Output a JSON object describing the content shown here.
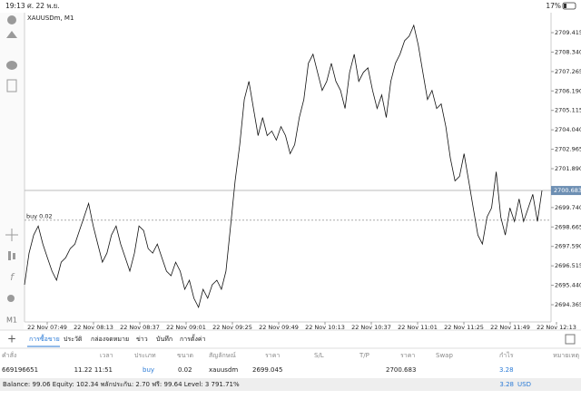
{
  "status_bar": {
    "time": "19:13",
    "date": "ศ. 22 พ.ย.",
    "battery": "17%"
  },
  "chart": {
    "symbol": "XAUUSDm, M1",
    "y_ticks": [
      2709.415,
      {
        "value": 2708.34,
        "label": "2708.340"
      },
      2707.265,
      {
        "value": 2706.19,
        "label": "2706.190"
      },
      2705.115,
      {
        "value": 2704.04,
        "label": "2704.040"
      },
      2702.965,
      {
        "value": 2701.89,
        "label": "2701.890"
      },
      {
        "value": 2699.74,
        "label": "2699.740"
      },
      2698.665,
      {
        "value": 2697.59,
        "label": "2697.590"
      },
      2696.515,
      {
        "value": 2695.44,
        "label": "2695.440"
      },
      2694.365
    ],
    "current_price": 2700.683,
    "order_line": {
      "label": "buy 0.02",
      "price": 2699.045
    },
    "x_ticks": [
      "22 Nov 07:49",
      "22 Nov 08:13",
      "22 Nov 08:37",
      "22 Nov 09:01",
      "22 Nov 09:25",
      "22 Nov 09:49",
      "22 Nov 10:13",
      "22 Nov 10:37",
      "22 Nov 11:01",
      "22 Nov 11:25",
      "22 Nov 11:49",
      "22 Nov 12:13"
    ],
    "prices": [
      2695.47,
      2697.22,
      2698.22,
      2698.72,
      2697.72,
      2696.97,
      2696.22,
      2695.72,
      2696.72,
      2696.97,
      2697.47,
      2697.72,
      2698.47,
      2699.22,
      2699.97,
      2698.72,
      2697.72,
      2696.72,
      2697.22,
      2698.22,
      2698.72,
      2697.72,
      2696.97,
      2696.22,
      2697.22,
      2698.72,
      2698.47,
      2697.47,
      2697.22,
      2697.72,
      2696.97,
      2696.22,
      2695.97,
      2696.72,
      2696.22,
      2695.22,
      2695.72,
      2694.72,
      2694.22,
      2695.22,
      2694.72,
      2695.47,
      2695.72,
      2695.22,
      2696.22,
      2698.72,
      2701.22,
      2703.22,
      2705.72,
      2706.72,
      2705.22,
      2703.72,
      2704.72,
      2703.72,
      2703.97,
      2703.47,
      2704.22,
      2703.72,
      2702.72,
      2703.22,
      2704.72,
      2705.72,
      2707.72,
      2708.22,
      2707.22,
      2706.22,
      2706.72,
      2707.72,
      2706.72,
      2706.22,
      2705.22,
      2707.22,
      2708.22,
      2706.72,
      2707.22,
      2707.47,
      2706.22,
      2705.22,
      2705.97,
      2704.72,
      2706.72,
      2707.72,
      2708.22,
      2708.97,
      2709.22,
      2709.82,
      2708.72,
      2707.22,
      2705.72,
      2706.22,
      2705.22,
      2705.47,
      2704.22,
      2702.47,
      2701.22,
      2701.47,
      2702.72,
      2701.22,
      2699.72,
      2698.22,
      2697.72,
      2699.22,
      2699.72,
      2701.72,
      2699.22,
      2698.22,
      2699.72,
      2698.97,
      2700.22,
      2698.97,
      2699.72,
      2700.47,
      2698.97,
      2700.68
    ]
  },
  "tabs": [
    "การซื้อขาย",
    "ประวัติ",
    "กล่องจดหมาย",
    "ข่าว",
    "บันทึก",
    "การตั้งค่า"
  ],
  "table": {
    "headers": [
      "คำสั่ง",
      "เวลา",
      "ประเภท",
      "ขนาด",
      "สัญลักษณ์",
      "ราคา",
      "S/L",
      "T/P",
      "ราคา",
      "Swap",
      "กำไร",
      "หมายเหตุ"
    ],
    "row": {
      "order": "669196651",
      "time": "11.22 11:51",
      "type": "buy",
      "volume": 0.02,
      "symbol": "xauusdm",
      "open_price": 2699.045,
      "price": 2700.683,
      "profit": 3.28
    }
  },
  "footer": {
    "summary": "Balance: 99.06 Equity: 102.34 พลักประกัน: 2.70 ฟรี: 99.64 Level: 3 791.71%",
    "profit": 3.28,
    "currency": "USD"
  }
}
